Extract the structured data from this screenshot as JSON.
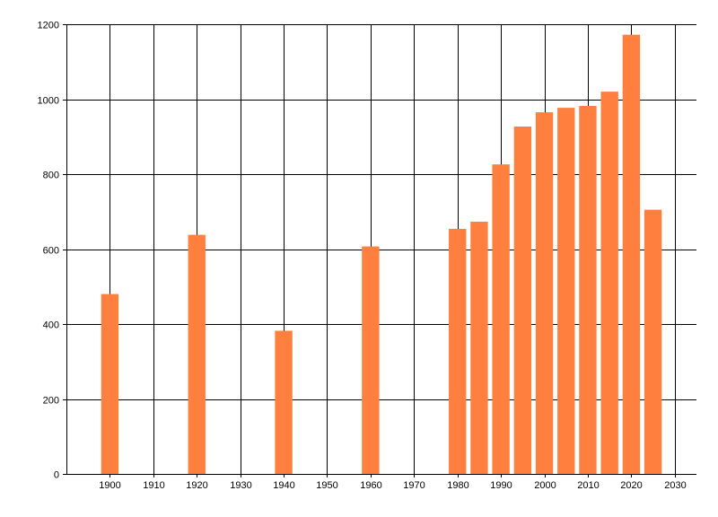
{
  "chart_data": {
    "type": "bar",
    "title": "",
    "xlabel": "",
    "ylabel": "",
    "x_ticks": [
      1900,
      1910,
      1920,
      1930,
      1940,
      1950,
      1960,
      1970,
      1980,
      1990,
      2000,
      2010,
      2020,
      2030
    ],
    "y_ticks": [
      0,
      200,
      400,
      600,
      800,
      1000,
      1200
    ],
    "xlim": [
      1890,
      2035
    ],
    "ylim": [
      0,
      1200
    ],
    "grid": true,
    "legend": "none",
    "series": [
      {
        "color": "#ff7f3f",
        "points": [
          {
            "x": 1900,
            "y": 480
          },
          {
            "x": 1920,
            "y": 638
          },
          {
            "x": 1940,
            "y": 382
          },
          {
            "x": 1960,
            "y": 607
          },
          {
            "x": 1980,
            "y": 654
          },
          {
            "x": 1985,
            "y": 673
          },
          {
            "x": 1990,
            "y": 826
          },
          {
            "x": 1995,
            "y": 927
          },
          {
            "x": 2000,
            "y": 965
          },
          {
            "x": 2005,
            "y": 977
          },
          {
            "x": 2010,
            "y": 982
          },
          {
            "x": 2015,
            "y": 1020
          },
          {
            "x": 2020,
            "y": 1172
          },
          {
            "x": 2025,
            "y": 705
          }
        ]
      }
    ]
  }
}
